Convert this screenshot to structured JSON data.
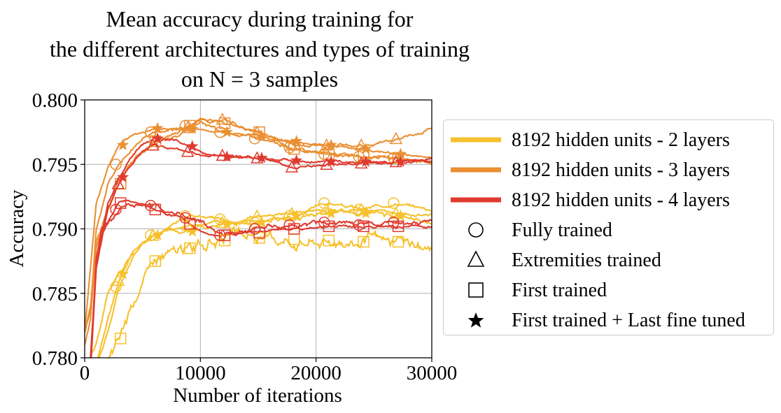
{
  "chart_data": {
    "type": "line",
    "title": [
      "Mean accuracy during training for",
      "the different architectures and types of training",
      "on N = 3 samples"
    ],
    "xlabel": "Number of iterations",
    "ylabel": "Accuracy",
    "xlim": [
      0,
      30000
    ],
    "ylim": [
      0.78,
      0.8
    ],
    "xticks": [
      0,
      10000,
      20000,
      30000
    ],
    "xtick_labels": [
      "0",
      "10000",
      "20000",
      "30000"
    ],
    "yticks": [
      0.78,
      0.785,
      0.79,
      0.795,
      0.8
    ],
    "ytick_labels": [
      "0.780",
      "0.785",
      "0.790",
      "0.795",
      "0.800"
    ],
    "grid": true,
    "legend_position": "right",
    "colors": {
      "2 layers": "#f6c12c",
      "3 layers": "#ea8f32",
      "4 layers": "#e03a2f",
      "axis": "#000000",
      "grid": "#b0b0b0"
    },
    "legend": [
      {
        "label": "8192 hidden units - 2 layers",
        "kind": "line",
        "color": "#f6c12c"
      },
      {
        "label": "8192 hidden units - 3 layers",
        "kind": "line",
        "color": "#ea8f32"
      },
      {
        "label": "8192 hidden units - 4 layers",
        "kind": "line",
        "color": "#e03a2f"
      },
      {
        "label": "Fully trained",
        "kind": "marker",
        "marker": "circle"
      },
      {
        "label": "Extremities trained",
        "kind": "marker",
        "marker": "triangle"
      },
      {
        "label": "First trained",
        "kind": "marker",
        "marker": "square"
      },
      {
        "label": "First trained + Last fine tuned",
        "kind": "marker",
        "marker": "star"
      }
    ],
    "series": [
      {
        "architecture": "2 layers",
        "training": "Fully trained",
        "marker": "circle",
        "noise": 0.00015,
        "x": [
          0,
          1000,
          2000,
          3000,
          4000,
          5000,
          6000,
          7000,
          9000,
          11000,
          13000,
          15000,
          18000,
          21000,
          24000,
          27000,
          30000
        ],
        "y": [
          0.779,
          0.7795,
          0.782,
          0.7855,
          0.7875,
          0.789,
          0.7895,
          0.79,
          0.791,
          0.791,
          0.7905,
          0.7905,
          0.791,
          0.792,
          0.7915,
          0.792,
          0.7915
        ]
      },
      {
        "architecture": "2 layers",
        "training": "Extremities trained",
        "marker": "triangle",
        "noise": 0.00012,
        "x": [
          0,
          1000,
          2000,
          3000,
          4000,
          5000,
          6000,
          7000,
          9000,
          11000,
          13000,
          15000,
          18000,
          21000,
          24000,
          27000,
          30000
        ],
        "y": [
          0.779,
          0.7795,
          0.783,
          0.786,
          0.788,
          0.789,
          0.7895,
          0.7898,
          0.7903,
          0.7905,
          0.7905,
          0.791,
          0.7912,
          0.7915,
          0.7915,
          0.7912,
          0.791
        ]
      },
      {
        "architecture": "2 layers",
        "training": "First trained",
        "marker": "square",
        "noise": 0.0005,
        "x": [
          0,
          1000,
          2000,
          3000,
          4000,
          5000,
          6000,
          7000,
          9000,
          11000,
          13000,
          15000,
          18000,
          21000,
          24000,
          27000,
          30000
        ],
        "y": [
          0.777,
          0.7785,
          0.7795,
          0.7815,
          0.784,
          0.786,
          0.7875,
          0.788,
          0.7885,
          0.789,
          0.7892,
          0.7893,
          0.7892,
          0.7891,
          0.789,
          0.789,
          0.7885
        ]
      },
      {
        "architecture": "2 layers",
        "training": "First trained + Last fine tuned",
        "marker": "star",
        "noise": 0.0002,
        "x": [
          0,
          1000,
          2000,
          3000,
          4000,
          5000,
          6000,
          7000,
          9000,
          11000,
          13000,
          15000,
          18000,
          21000,
          24000,
          27000,
          30000
        ],
        "y": [
          0.779,
          0.781,
          0.785,
          0.7865,
          0.788,
          0.789,
          0.7895,
          0.79,
          0.7898,
          0.7902,
          0.7905,
          0.7905,
          0.791,
          0.7912,
          0.7912,
          0.791,
          0.7905
        ]
      },
      {
        "architecture": "3 layers",
        "training": "Fully trained",
        "marker": "circle",
        "noise": 0.00015,
        "x": [
          0,
          500,
          1000,
          2000,
          3000,
          4000,
          5000,
          6000,
          8000,
          10000,
          12000,
          15000,
          18000,
          21000,
          24000,
          27000,
          30000
        ],
        "y": [
          0.782,
          0.7835,
          0.79,
          0.7935,
          0.795,
          0.7962,
          0.797,
          0.7975,
          0.7978,
          0.7982,
          0.7975,
          0.797,
          0.7963,
          0.7958,
          0.7956,
          0.7955,
          0.7952
        ]
      },
      {
        "architecture": "3 layers",
        "training": "Extremities trained",
        "marker": "triangle",
        "noise": 0.00015,
        "x": [
          0,
          500,
          1000,
          2000,
          3000,
          4000,
          5000,
          6000,
          8000,
          10000,
          12000,
          15000,
          18000,
          21000,
          24000,
          27000,
          30000
        ],
        "y": [
          0.782,
          0.784,
          0.789,
          0.7915,
          0.7935,
          0.795,
          0.796,
          0.7965,
          0.7972,
          0.7985,
          0.7985,
          0.7975,
          0.7965,
          0.7965,
          0.7965,
          0.797,
          0.7978
        ]
      },
      {
        "architecture": "3 layers",
        "training": "First trained",
        "marker": "square",
        "noise": 0.00012,
        "x": [
          0,
          500,
          1000,
          2000,
          3000,
          4000,
          5000,
          6000,
          8000,
          10000,
          12000,
          15000,
          18000,
          21000,
          24000,
          27000,
          30000
        ],
        "y": [
          0.781,
          0.783,
          0.7885,
          0.7915,
          0.7935,
          0.795,
          0.796,
          0.7968,
          0.7975,
          0.7985,
          0.7982,
          0.7975,
          0.7962,
          0.7958,
          0.7957,
          0.7955,
          0.7951
        ]
      },
      {
        "architecture": "3 layers",
        "training": "First trained + Last fine tuned",
        "marker": "star",
        "noise": 0.0001,
        "x": [
          0,
          500,
          1000,
          2000,
          3000,
          4000,
          5000,
          6000,
          8000,
          10000,
          12000,
          15000,
          18000,
          21000,
          24000,
          27000,
          30000
        ],
        "y": [
          0.782,
          0.787,
          0.792,
          0.7948,
          0.7965,
          0.7972,
          0.7975,
          0.7978,
          0.7978,
          0.7977,
          0.7975,
          0.7972,
          0.7968,
          0.7965,
          0.7962,
          0.7958,
          0.7955
        ]
      },
      {
        "architecture": "4 layers",
        "training": "Fully trained",
        "marker": "circle",
        "noise": 0.0002,
        "x": [
          0,
          500,
          1000,
          1500,
          2000,
          3000,
          4000,
          5000,
          6000,
          8000,
          10000,
          12000,
          15000,
          18000,
          21000,
          24000,
          27000,
          30000
        ],
        "y": [
          0.778,
          0.779,
          0.7875,
          0.79,
          0.7905,
          0.7915,
          0.792,
          0.792,
          0.7918,
          0.7912,
          0.7905,
          0.7895,
          0.79,
          0.7903,
          0.7905,
          0.7903,
          0.7905,
          0.7903
        ]
      },
      {
        "architecture": "4 layers",
        "training": "Extremities trained",
        "marker": "triangle",
        "noise": 0.00012,
        "x": [
          0,
          500,
          1000,
          2000,
          3000,
          4000,
          5000,
          6000,
          8000,
          10000,
          12000,
          15000,
          18000,
          21000,
          24000,
          27000,
          30000
        ],
        "y": [
          0.778,
          0.78,
          0.787,
          0.7915,
          0.7935,
          0.795,
          0.796,
          0.7965,
          0.7962,
          0.7958,
          0.7957,
          0.7955,
          0.7948,
          0.795,
          0.7951,
          0.7952,
          0.7953
        ]
      },
      {
        "architecture": "4 layers",
        "training": "First trained",
        "marker": "square",
        "noise": 0.00012,
        "x": [
          0,
          500,
          1000,
          1500,
          2000,
          3000,
          4000,
          5000,
          6000,
          8000,
          10000,
          12000,
          15000,
          18000,
          21000,
          24000,
          27000,
          30000
        ],
        "y": [
          0.778,
          0.779,
          0.787,
          0.7895,
          0.7905,
          0.792,
          0.7922,
          0.7918,
          0.7915,
          0.791,
          0.7898,
          0.7895,
          0.7897,
          0.79,
          0.7902,
          0.7902,
          0.7902,
          0.7902
        ]
      },
      {
        "architecture": "4 layers",
        "training": "First trained + Last fine tuned",
        "marker": "star",
        "noise": 0.00012,
        "x": [
          0,
          500,
          1000,
          2000,
          3000,
          4000,
          5000,
          6000,
          8000,
          10000,
          12000,
          15000,
          18000,
          21000,
          24000,
          27000,
          30000
        ],
        "y": [
          0.778,
          0.78,
          0.787,
          0.792,
          0.794,
          0.7955,
          0.7965,
          0.797,
          0.7968,
          0.796,
          0.7956,
          0.7955,
          0.7953,
          0.7952,
          0.7952,
          0.7952,
          0.7954
        ]
      }
    ]
  }
}
